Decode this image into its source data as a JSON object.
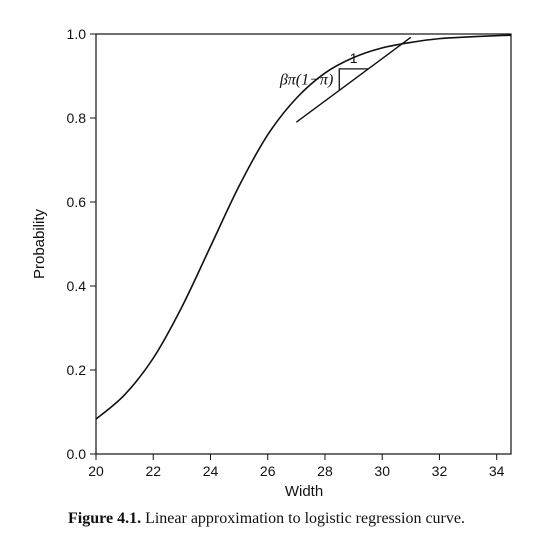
{
  "caption": {
    "label": "Figure 4.1.",
    "text": "Linear approximation to logistic regression curve."
  },
  "chart_data": {
    "type": "line",
    "title": "",
    "xlabel": "Width",
    "ylabel": "Probability",
    "xlim": [
      20,
      34.5
    ],
    "ylim": [
      0,
      1.0
    ],
    "xticks": [
      20,
      22,
      24,
      26,
      28,
      30,
      32,
      34
    ],
    "yticks": [
      0.0,
      0.2,
      0.4,
      0.6,
      0.8,
      1.0
    ],
    "ytick_labels": [
      "0.0",
      "0.2",
      "0.4",
      "0.6",
      "0.8",
      "1.0"
    ],
    "grid": false,
    "series": [
      {
        "kind": "logistic_curve",
        "x": [
          20,
          21,
          22,
          23,
          24,
          25,
          26,
          27,
          28,
          29,
          30,
          31,
          32,
          33,
          34,
          34.5
        ],
        "values": [
          0.083,
          0.141,
          0.228,
          0.35,
          0.494,
          0.638,
          0.76,
          0.847,
          0.907,
          0.944,
          0.967,
          0.98,
          0.989,
          0.993,
          0.996,
          0.997
        ]
      },
      {
        "kind": "tangent_line",
        "x": [
          27.0,
          31.0
        ],
        "values": [
          0.79,
          0.992
        ]
      }
    ],
    "annotations": {
      "slope_label": "βπ(1−π)",
      "run_label": "1",
      "triangle": {
        "x_left": 28.5,
        "x_right": 29.5,
        "y_low": 0.867,
        "y_high": 0.917
      }
    },
    "colors": {
      "line": "#111111",
      "axis": "#111111",
      "background": "#ffffff"
    }
  }
}
